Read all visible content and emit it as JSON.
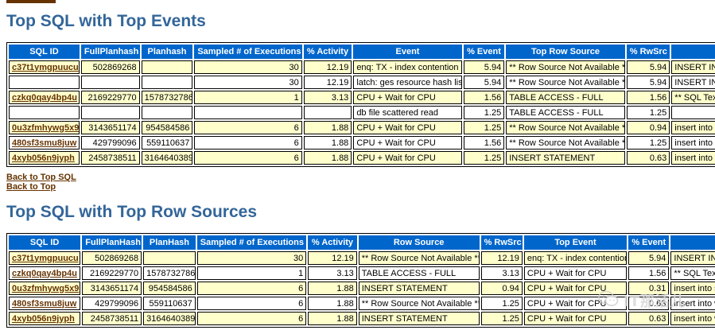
{
  "section1": {
    "title": "Top SQL with Top Events",
    "headers": [
      "SQL ID",
      "FullPlanhash",
      "Planhash",
      "Sampled # of Executions",
      "% Activity",
      "Event",
      "% Event",
      "Top Row Source",
      "% RwSrc",
      ""
    ],
    "rows": [
      [
        "c37t1ymgpuucu",
        "502869268",
        "",
        "30",
        "12.19",
        "enq: TX - index contention",
        "5.94",
        "** Row Source Not Available **",
        "5.94",
        "INSERT INTO"
      ],
      [
        "",
        "",
        "",
        "30",
        "12.19",
        "latch: ges resource hash list",
        "5.94",
        "** Row Source Not Available **",
        "5.94",
        "INSERT INTO"
      ],
      [
        "czkq0qay4bp4u",
        "2169229770",
        "1578732786",
        "1",
        "3.13",
        "CPU + Wait for CPU",
        "1.56",
        "TABLE ACCESS - FULL",
        "1.56",
        "** SQL Text"
      ],
      [
        "",
        "",
        "",
        "",
        "",
        "db file scattered read",
        "1.25",
        "TABLE ACCESS - FULL",
        "1.25",
        ""
      ],
      [
        "0u3zfmhywg5x9",
        "3143651174",
        "954584586",
        "6",
        "1.88",
        "CPU + Wait for CPU",
        "1.25",
        "** Row Source Not Available **",
        "0.94",
        "insert into sl"
      ],
      [
        "480sf3smu8juw",
        "429799096",
        "559110637",
        "6",
        "1.88",
        "CPU + Wait for CPU",
        "1.56",
        "** Row Source Not Available **",
        "1.25",
        "insert into ws"
      ],
      [
        "4xyb056n9jyph",
        "2458738511",
        "3164640389",
        "6",
        "1.88",
        "CPU + Wait for CPU",
        "1.25",
        "INSERT STATEMENT",
        "0.63",
        "insert into ws"
      ]
    ]
  },
  "nav": {
    "back_sql": "Back to Top SQL",
    "back_top": "Back to Top"
  },
  "section2": {
    "title": "Top SQL with Top Row Sources",
    "headers": [
      "SQL ID",
      "FullPlanHash",
      "PlanHash",
      "Sampled # of Executions",
      "% Activity",
      "Row Source",
      "% RwSrc",
      "Top Event",
      "% Event",
      ""
    ],
    "rows": [
      [
        "c37t1ymgpuucu",
        "502869268",
        "",
        "30",
        "12.19",
        "** Row Source Not Available **",
        "12.19",
        "enq: TX - index contention",
        "5.94",
        "INSERT INTO"
      ],
      [
        "czkq0qay4bp4u",
        "2169229770",
        "1578732786",
        "1",
        "3.13",
        "TABLE ACCESS - FULL",
        "3.13",
        "CPU + Wait for CPU",
        "1.56",
        "** SQL Text"
      ],
      [
        "0u3zfmhywg5x9",
        "3143651174",
        "954584586",
        "6",
        "1.88",
        "INSERT STATEMENT",
        "0.94",
        "CPU + Wait for CPU",
        "0.31",
        "insert into sl"
      ],
      [
        "480sf3smu8juw",
        "429799096",
        "559110637",
        "6",
        "1.88",
        "** Row Source Not Available **",
        "1.25",
        "CPU + Wait for CPU",
        "0.63",
        "insert into ws"
      ],
      [
        "4xyb056n9jyph",
        "2458738511",
        "3164640389",
        "6",
        "1.88",
        "INSERT STATEMENT",
        "1.25",
        "CPU + Wait for CPU",
        "0.63",
        "insert into ws"
      ]
    ]
  },
  "watermark": {
    "text": "IT那活儿",
    "icon": "wechat-icon"
  }
}
